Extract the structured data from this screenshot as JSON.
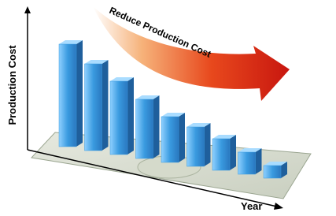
{
  "chart_data": {
    "type": "bar3d",
    "annotation": "Reduce Production Cost",
    "y_label": "Production Cost",
    "x_label": "Year",
    "categories": [
      null,
      null,
      null,
      null,
      null,
      null,
      null,
      null,
      null
    ],
    "values": [
      130,
      110,
      93,
      75,
      58,
      50,
      40,
      28,
      16
    ],
    "color": "#3a9be0",
    "ylim": [
      0,
      140
    ]
  }
}
